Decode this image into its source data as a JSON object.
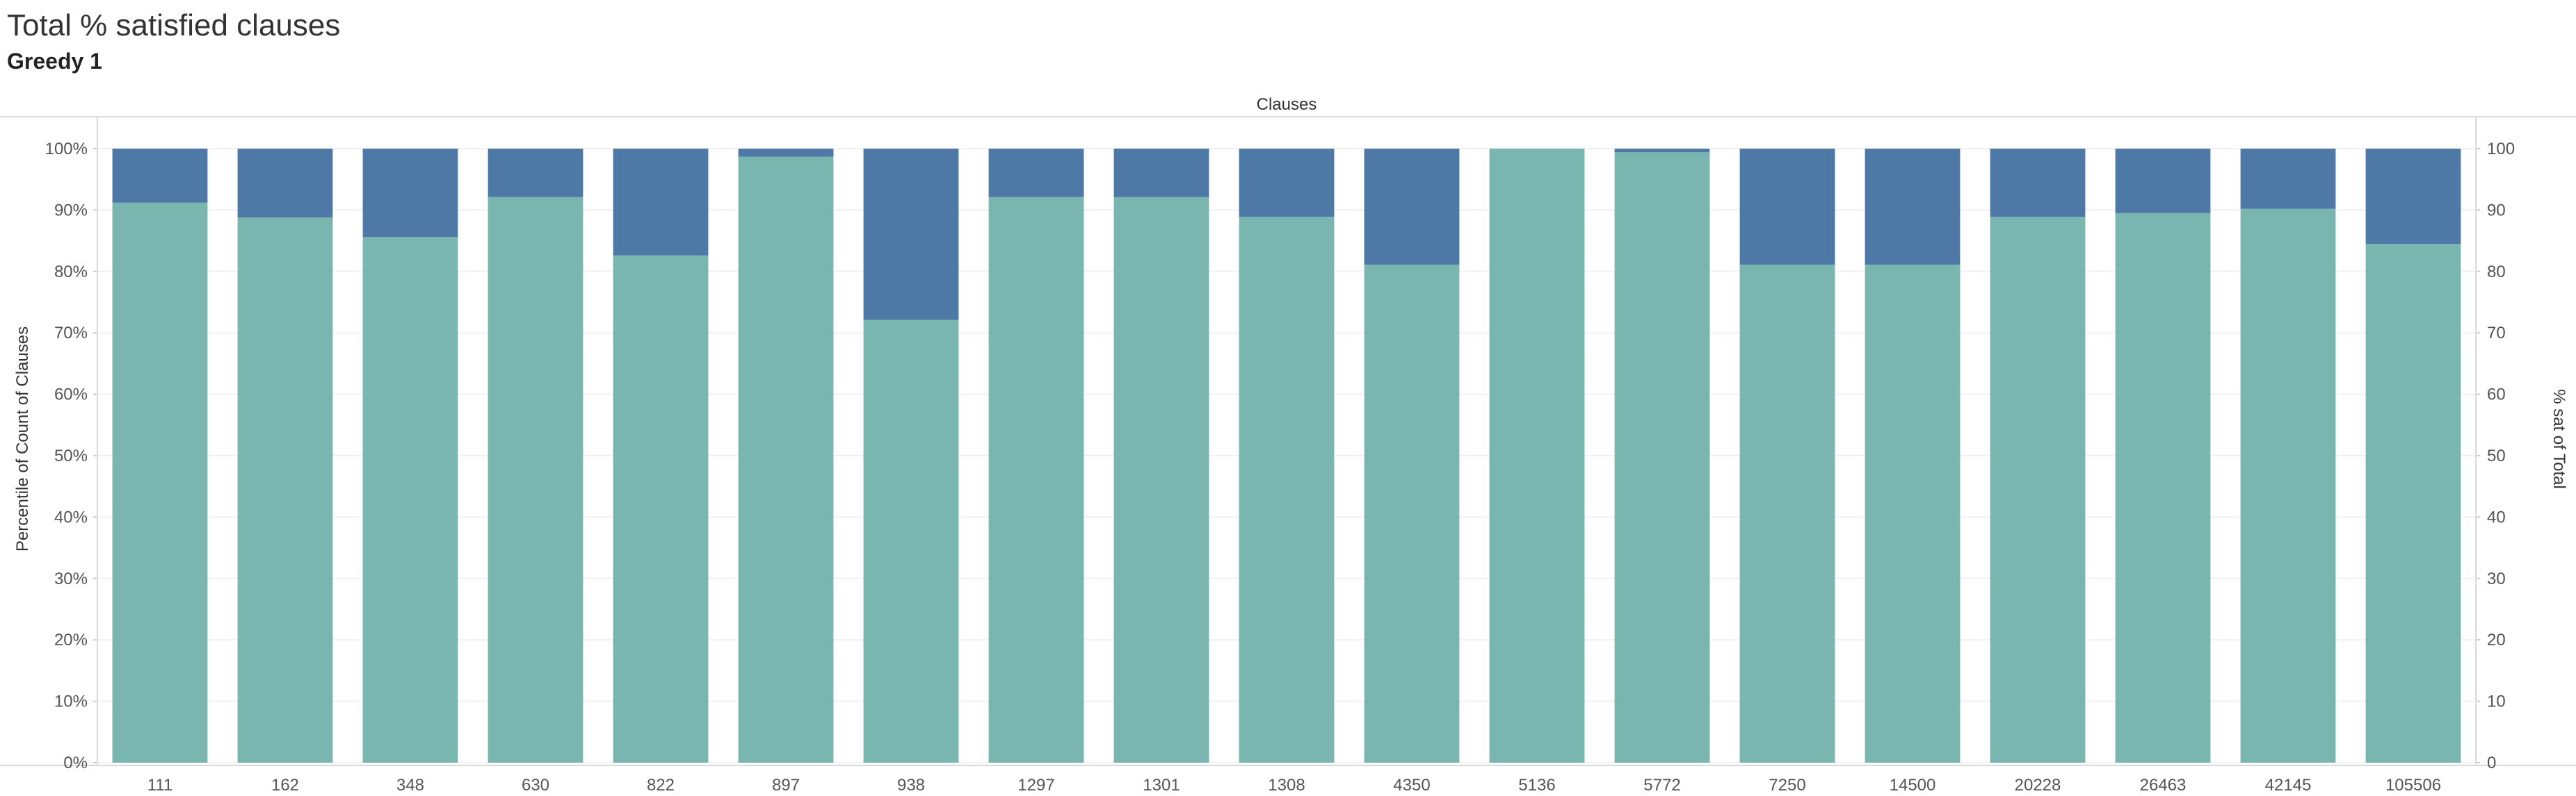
{
  "header": {
    "title": "Total % satisfied clauses",
    "subtitle": "Greedy 1"
  },
  "chart_data": {
    "type": "bar",
    "stacked": true,
    "column_header": "Clauses",
    "categories": [
      "111",
      "162",
      "348",
      "630",
      "822",
      "897",
      "938",
      "1297",
      "1301",
      "1308",
      "4350",
      "5136",
      "5772",
      "7250",
      "14500",
      "20228",
      "26463",
      "42145",
      "105506"
    ],
    "series": [
      {
        "color": "#79b6b0",
        "values": [
          91.2,
          88.8,
          85.6,
          92.1,
          82.6,
          98.7,
          72.1,
          92.1,
          92.1,
          88.9,
          81.1,
          100.0,
          99.4,
          81.1,
          81.1,
          88.9,
          89.5,
          90.2,
          84.5
        ]
      },
      {
        "color": "#4e79a7",
        "values": [
          8.8,
          11.2,
          14.4,
          7.9,
          17.4,
          1.3,
          27.9,
          7.9,
          7.9,
          11.1,
          18.9,
          0.0,
          0.6,
          18.9,
          18.9,
          11.1,
          10.5,
          9.8,
          15.5
        ]
      }
    ],
    "ylabel": "Percentile of Count of Clauses",
    "ylim": [
      0,
      100
    ],
    "yticks": [
      "0%",
      "10%",
      "20%",
      "30%",
      "40%",
      "50%",
      "60%",
      "70%",
      "80%",
      "90%",
      "100%"
    ],
    "y2label": "% sat of Total",
    "y2lim": [
      0,
      100
    ],
    "y2ticks": [
      "0",
      "10",
      "20",
      "30",
      "40",
      "50",
      "60",
      "70",
      "80",
      "90",
      "100"
    ],
    "grid": true,
    "legend": "none"
  }
}
